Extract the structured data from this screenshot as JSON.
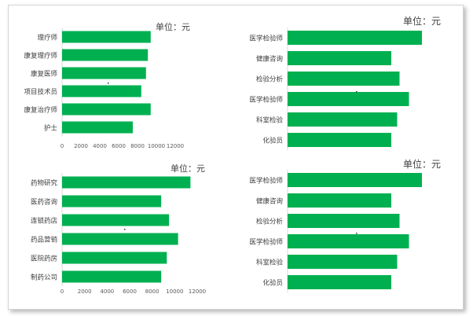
{
  "colors": {
    "bar": "#00b050",
    "text": "#404040",
    "axis": "#595959"
  },
  "chart_data": [
    {
      "type": "bar",
      "orientation": "horizontal",
      "unit_label": "单位：元",
      "categories": [
        "理疗师",
        "康复理疗师",
        "康复医师",
        "项目技术员",
        "康复治疗师",
        "护士"
      ],
      "values": [
        9400,
        9100,
        8900,
        8400,
        9400,
        7500
      ],
      "xlim": [
        0,
        12000
      ],
      "xticks": [
        "0",
        "2000",
        "4000",
        "6000",
        "8000",
        "10000",
        "12000"
      ],
      "grid": false
    },
    {
      "type": "bar",
      "orientation": "horizontal",
      "unit_label": "单位：元",
      "categories": [
        "医学检验师",
        "健康咨询",
        "检验分析",
        "医学检验师",
        "科室检验",
        "化验员"
      ],
      "values": [
        11400,
        8800,
        9500,
        10300,
        9300,
        8800
      ],
      "xlim": [
        0,
        12000
      ],
      "xticks": [],
      "grid": false
    },
    {
      "type": "bar",
      "orientation": "horizontal",
      "unit_label": "单位：元",
      "categories": [
        "药物研究",
        "医药咨询",
        "连锁药店",
        "药品营销",
        "医院药房",
        "制药公司"
      ],
      "values": [
        11400,
        8800,
        9500,
        10300,
        9300,
        8800
      ],
      "xlim": [
        0,
        12000
      ],
      "xticks": [
        "0",
        "2000",
        "4000",
        "6000",
        "8000",
        "10000",
        "12000"
      ],
      "grid": false
    },
    {
      "type": "bar",
      "orientation": "horizontal",
      "unit_label": "单位：元",
      "categories": [
        "医学检验师",
        "健康咨询",
        "检验分析",
        "医学检验师",
        "科室检验",
        "化验员"
      ],
      "values": [
        11400,
        8800,
        9500,
        10300,
        9300,
        8800
      ],
      "xlim": [
        0,
        12000
      ],
      "xticks": [],
      "grid": false
    }
  ]
}
